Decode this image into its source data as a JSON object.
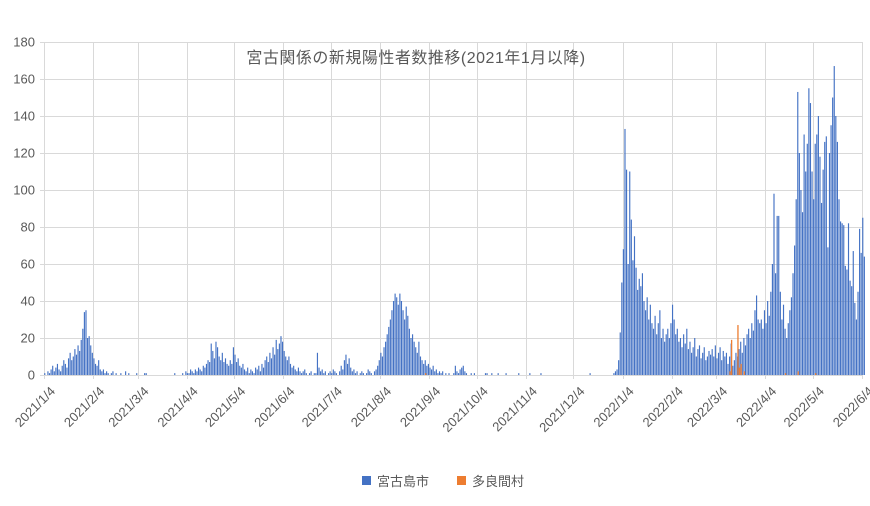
{
  "chart_data": {
    "type": "bar",
    "title": "宮古関係の新規陽性者数推移(2021年1月以降)",
    "ylabel": "",
    "xlabel": "",
    "ylim": [
      0,
      180
    ],
    "y_tick_step": 20,
    "y_tick_labels": [
      "0",
      "20",
      "40",
      "60",
      "80",
      "100",
      "120",
      "140",
      "160",
      "180"
    ],
    "x_tick_labels": [
      "2021/1/4",
      "2021/2/4",
      "2021/3/4",
      "2021/4/4",
      "2021/5/4",
      "2021/6/4",
      "2021/7/4",
      "2021/8/4",
      "2021/9/4",
      "2021/10/4",
      "2021/11/4",
      "2021/12/4",
      "2022/1/4",
      "2022/2/4",
      "2022/3/4",
      "2022/4/4",
      "2022/5/4",
      "2022/6/4"
    ],
    "x_tick_day_offsets": [
      0,
      31,
      59,
      90,
      120,
      151,
      181,
      212,
      243,
      273,
      304,
      334,
      365,
      396,
      424,
      455,
      485,
      516
    ],
    "start_date": "2021/1/4",
    "grid": true,
    "grid_color": "#D9D9D9",
    "axis_text_color": "#595959",
    "legend_position": "bottom",
    "series": [
      {
        "name": "宮古島市",
        "color": "#4472C4",
        "values": [
          1,
          0,
          2,
          1,
          3,
          5,
          2,
          4,
          6,
          3,
          2,
          5,
          8,
          6,
          4,
          9,
          12,
          8,
          10,
          14,
          11,
          16,
          13,
          19,
          25,
          34,
          35,
          20,
          21,
          16,
          12,
          9,
          6,
          5,
          8,
          3,
          2,
          3,
          1,
          2,
          1,
          0,
          1,
          2,
          0,
          1,
          0,
          0,
          1,
          0,
          0,
          2,
          0,
          1,
          0,
          0,
          0,
          0,
          1,
          0,
          0,
          0,
          0,
          1,
          1,
          0,
          0,
          0,
          0,
          0,
          0,
          0,
          0,
          0,
          0,
          0,
          0,
          0,
          0,
          0,
          0,
          0,
          1,
          0,
          0,
          0,
          0,
          1,
          0,
          2,
          1,
          1,
          3,
          2,
          1,
          3,
          2,
          4,
          3,
          2,
          5,
          4,
          6,
          8,
          7,
          17,
          13,
          9,
          18,
          15,
          10,
          8,
          12,
          7,
          9,
          6,
          5,
          8,
          6,
          15,
          11,
          7,
          9,
          5,
          4,
          6,
          3,
          2,
          4,
          1,
          3,
          2,
          1,
          4,
          3,
          5,
          2,
          6,
          4,
          8,
          10,
          7,
          12,
          9,
          15,
          11,
          19,
          14,
          17,
          21,
          18,
          13,
          10,
          8,
          10,
          6,
          4,
          5,
          3,
          2,
          4,
          2,
          1,
          2,
          3,
          1,
          0,
          1,
          2,
          0,
          1,
          1,
          12,
          4,
          2,
          3,
          1,
          2,
          0,
          1,
          2,
          1,
          3,
          2,
          1,
          0,
          2,
          5,
          3,
          8,
          11,
          6,
          9,
          4,
          2,
          3,
          1,
          2,
          0,
          1,
          2,
          1,
          0,
          1,
          3,
          2,
          1,
          0,
          2,
          3,
          5,
          8,
          12,
          10,
          15,
          18,
          22,
          26,
          30,
          35,
          40,
          44,
          42,
          38,
          44,
          40,
          35,
          30,
          37,
          32,
          25,
          20,
          22,
          18,
          15,
          12,
          18,
          10,
          8,
          6,
          8,
          5,
          6,
          4,
          3,
          5,
          2,
          3,
          1,
          2,
          1,
          2,
          0,
          1,
          0,
          1,
          0,
          0,
          1,
          5,
          2,
          1,
          3,
          4,
          5,
          2,
          1,
          0,
          0,
          1,
          0,
          1,
          0,
          0,
          0,
          0,
          0,
          0,
          1,
          1,
          0,
          0,
          1,
          0,
          0,
          0,
          1,
          0,
          0,
          0,
          0,
          1,
          0,
          0,
          0,
          0,
          0,
          0,
          0,
          1,
          0,
          0,
          0,
          0,
          0,
          0,
          1,
          0,
          0,
          0,
          0,
          0,
          0,
          1,
          0,
          0,
          0,
          0,
          0,
          0,
          0,
          0,
          0,
          0,
          0,
          0,
          0,
          0,
          0,
          0,
          0,
          0,
          0,
          0,
          0,
          0,
          0,
          0,
          0,
          0,
          0,
          0,
          0,
          0,
          1,
          0,
          0,
          0,
          0,
          0,
          0,
          0,
          0,
          0,
          0,
          0,
          0,
          0,
          0,
          1,
          2,
          3,
          8,
          23,
          50,
          68,
          133,
          111,
          60,
          110,
          84,
          62,
          75,
          58,
          46,
          52,
          48,
          55,
          40,
          35,
          42,
          30,
          38,
          28,
          25,
          32,
          22,
          28,
          35,
          20,
          25,
          18,
          22,
          25,
          20,
          28,
          38,
          30,
          22,
          25,
          18,
          20,
          15,
          22,
          17,
          25,
          14,
          18,
          12,
          15,
          20,
          10,
          14,
          16,
          9,
          12,
          15,
          8,
          10,
          13,
          11,
          14,
          10,
          16,
          9,
          12,
          15,
          8,
          13,
          10,
          12,
          6,
          10,
          17,
          5,
          8,
          12,
          10,
          14,
          18,
          12,
          20,
          16,
          22,
          25,
          20,
          28,
          24,
          35,
          43,
          30,
          28,
          30,
          25,
          35,
          28,
          40,
          32,
          45,
          60,
          98,
          55,
          86,
          86,
          45,
          30,
          38,
          25,
          20,
          28,
          35,
          42,
          55,
          70,
          95,
          153,
          120,
          100,
          88,
          130,
          110,
          125,
          155,
          147,
          110,
          95,
          125,
          130,
          140,
          118,
          93,
          111,
          126,
          129,
          69,
          120,
          135,
          150,
          167,
          140,
          126,
          95,
          83,
          82,
          81,
          59,
          57,
          82,
          51,
          48,
          67,
          39,
          30,
          45,
          79,
          66,
          85,
          64
        ]
      },
      {
        "name": "多良間村",
        "color": "#ED7D31",
        "length": 518,
        "sparse_values": {
          "240": 1,
          "432": 2,
          "433": 19,
          "437": 27,
          "438": 4,
          "439": 6,
          "441": 2,
          "467": 1,
          "475": 2,
          "486": 1
        }
      }
    ]
  }
}
